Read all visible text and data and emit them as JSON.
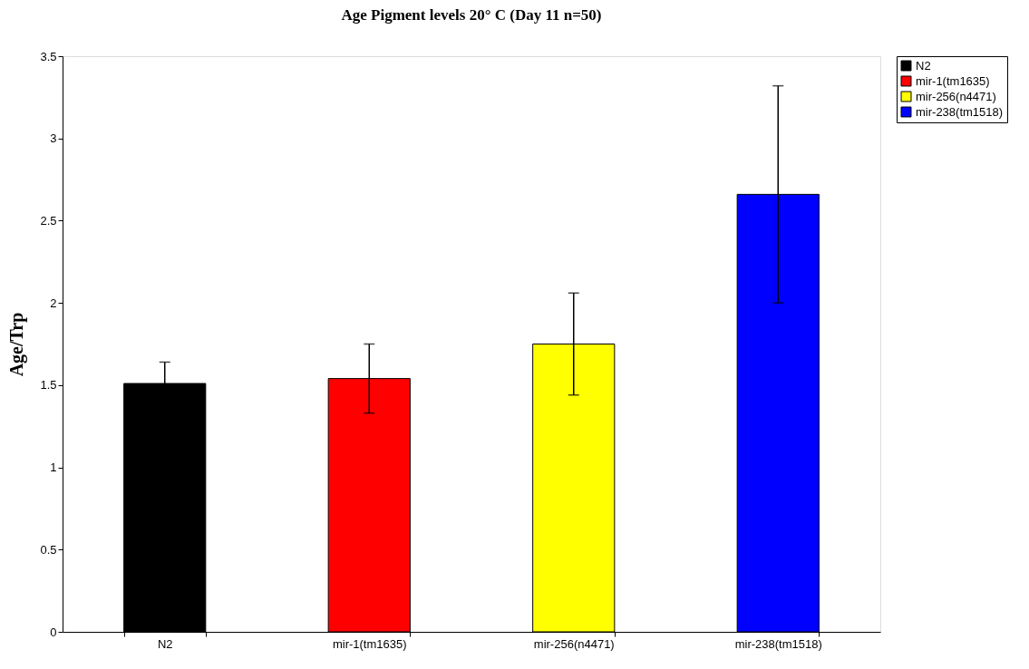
{
  "chart_data": {
    "type": "bar",
    "title": "Age Pigment levels 20° C (Day 11 n=50)",
    "ylabel": "Age/Trp",
    "categories": [
      "N2",
      "mir-1(tm1635)",
      "mir-256(n4471)",
      "mir-238(tm1518)"
    ],
    "series": [
      {
        "name": "N2",
        "color": "#000000",
        "values": [
          1.51,
          null,
          null,
          null
        ],
        "errors": [
          0.13,
          null,
          null,
          null
        ]
      },
      {
        "name": "mir-1(tm1635)",
        "color": "#ff0000",
        "values": [
          null,
          1.54,
          null,
          null
        ],
        "errors": [
          null,
          0.21,
          null,
          null
        ]
      },
      {
        "name": "mir-256(n4471)",
        "color": "#ffff00",
        "values": [
          null,
          null,
          1.75,
          null
        ],
        "errors": [
          null,
          null,
          0.31,
          null
        ]
      },
      {
        "name": "mir-238(tm1518)",
        "color": "#0000ff",
        "values": [
          null,
          null,
          null,
          2.66
        ],
        "errors": [
          null,
          null,
          null,
          0.66
        ]
      }
    ],
    "ylim": [
      0,
      3.5
    ],
    "yticks": [
      0,
      0.5,
      1,
      1.5,
      2,
      2.5,
      3,
      3.5
    ],
    "grid": false,
    "legend": "right"
  }
}
